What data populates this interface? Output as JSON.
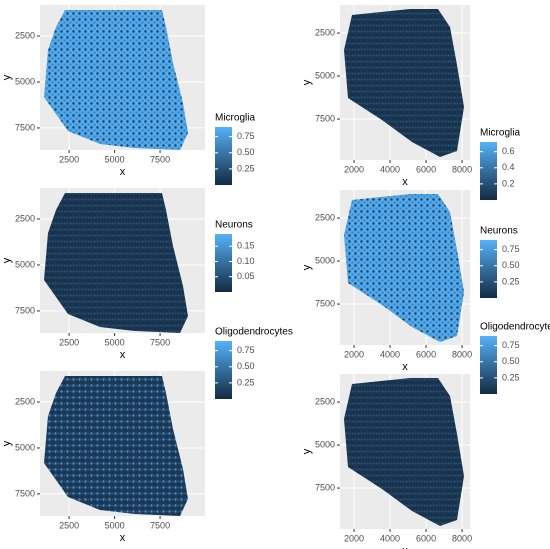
{
  "chart_data": [
    {
      "type": "spatial",
      "x_label": "x",
      "y_label": "y",
      "xlim": [
        900,
        9970
      ],
      "ylim": [
        815,
        8700
      ],
      "y_reversed": true,
      "xticks": [
        2500,
        5000,
        7500
      ],
      "yticks": [
        2500,
        5000,
        7500
      ],
      "legend_title": "Microglia",
      "color_low": "#132b43",
      "color_high": "#56b1f7",
      "color_lim": [
        0,
        0.9
      ],
      "color_ticks": [
        0.25,
        {
          "value": 0.5,
          "label": "0.50"
        },
        0.75
      ]
    },
    {
      "type": "spatial",
      "x_label": "x",
      "y_label": "y",
      "xlim": [
        1220,
        8440
      ],
      "ylim": [
        870,
        9880
      ],
      "y_reversed": true,
      "xticks": [
        2000,
        4000,
        6000,
        8000
      ],
      "yticks": [
        2500,
        5000,
        7500
      ],
      "legend_title": "Microglia",
      "color_low": "#132b43",
      "color_high": "#56b1f7",
      "color_lim": [
        0,
        0.72
      ],
      "color_ticks": [
        0.2,
        0.4,
        0.6
      ]
    },
    {
      "type": "spatial",
      "x_label": "x",
      "y_label": "y",
      "xlim": [
        900,
        9970
      ],
      "ylim": [
        815,
        8700
      ],
      "y_reversed": true,
      "xticks": [
        2500,
        5000,
        7500
      ],
      "yticks": [
        2500,
        5000,
        7500
      ],
      "legend_title": "Neurons",
      "color_low": "#132b43",
      "color_high": "#56b1f7",
      "color_lim": [
        0,
        0.19
      ],
      "color_ticks": [
        0.05,
        {
          "value": 0.1,
          "label": "0.10"
        },
        0.15
      ]
    },
    {
      "type": "spatial",
      "x_label": "x",
      "y_label": "y",
      "xlim": [
        1220,
        8440
      ],
      "ylim": [
        870,
        9880
      ],
      "y_reversed": true,
      "xticks": [
        2000,
        4000,
        6000,
        8000
      ],
      "yticks": [
        2500,
        5000,
        7500
      ],
      "legend_title": "Neurons",
      "color_low": "#132b43",
      "color_high": "#56b1f7",
      "color_lim": [
        0,
        0.9
      ],
      "color_ticks": [
        0.25,
        {
          "value": 0.5,
          "label": "0.50"
        },
        0.75
      ]
    },
    {
      "type": "spatial",
      "x_label": "x",
      "y_label": "y",
      "xlim": [
        900,
        9970
      ],
      "ylim": [
        815,
        8700
      ],
      "y_reversed": true,
      "xticks": [
        2500,
        5000,
        7500
      ],
      "yticks": [
        2500,
        5000,
        7500
      ],
      "legend_title": "Oligodendrocytes",
      "color_low": "#132b43",
      "color_high": "#56b1f7",
      "color_lim": [
        0,
        0.9
      ],
      "color_ticks": [
        0.25,
        {
          "value": 0.5,
          "label": "0.50"
        },
        0.75
      ]
    },
    {
      "type": "spatial",
      "x_label": "x",
      "y_label": "y",
      "xlim": [
        1220,
        8440
      ],
      "ylim": [
        870,
        9880
      ],
      "y_reversed": true,
      "xticks": [
        2000,
        4000,
        6000,
        8000
      ],
      "yticks": [
        2500,
        5000,
        7500
      ],
      "legend_title": "Oligodendrocytes",
      "color_low": "#132b43",
      "color_high": "#56b1f7",
      "color_lim": [
        0,
        0.9
      ],
      "color_ticks": [
        0.25,
        {
          "value": 0.5,
          "label": "0.50"
        },
        0.75
      ]
    }
  ]
}
